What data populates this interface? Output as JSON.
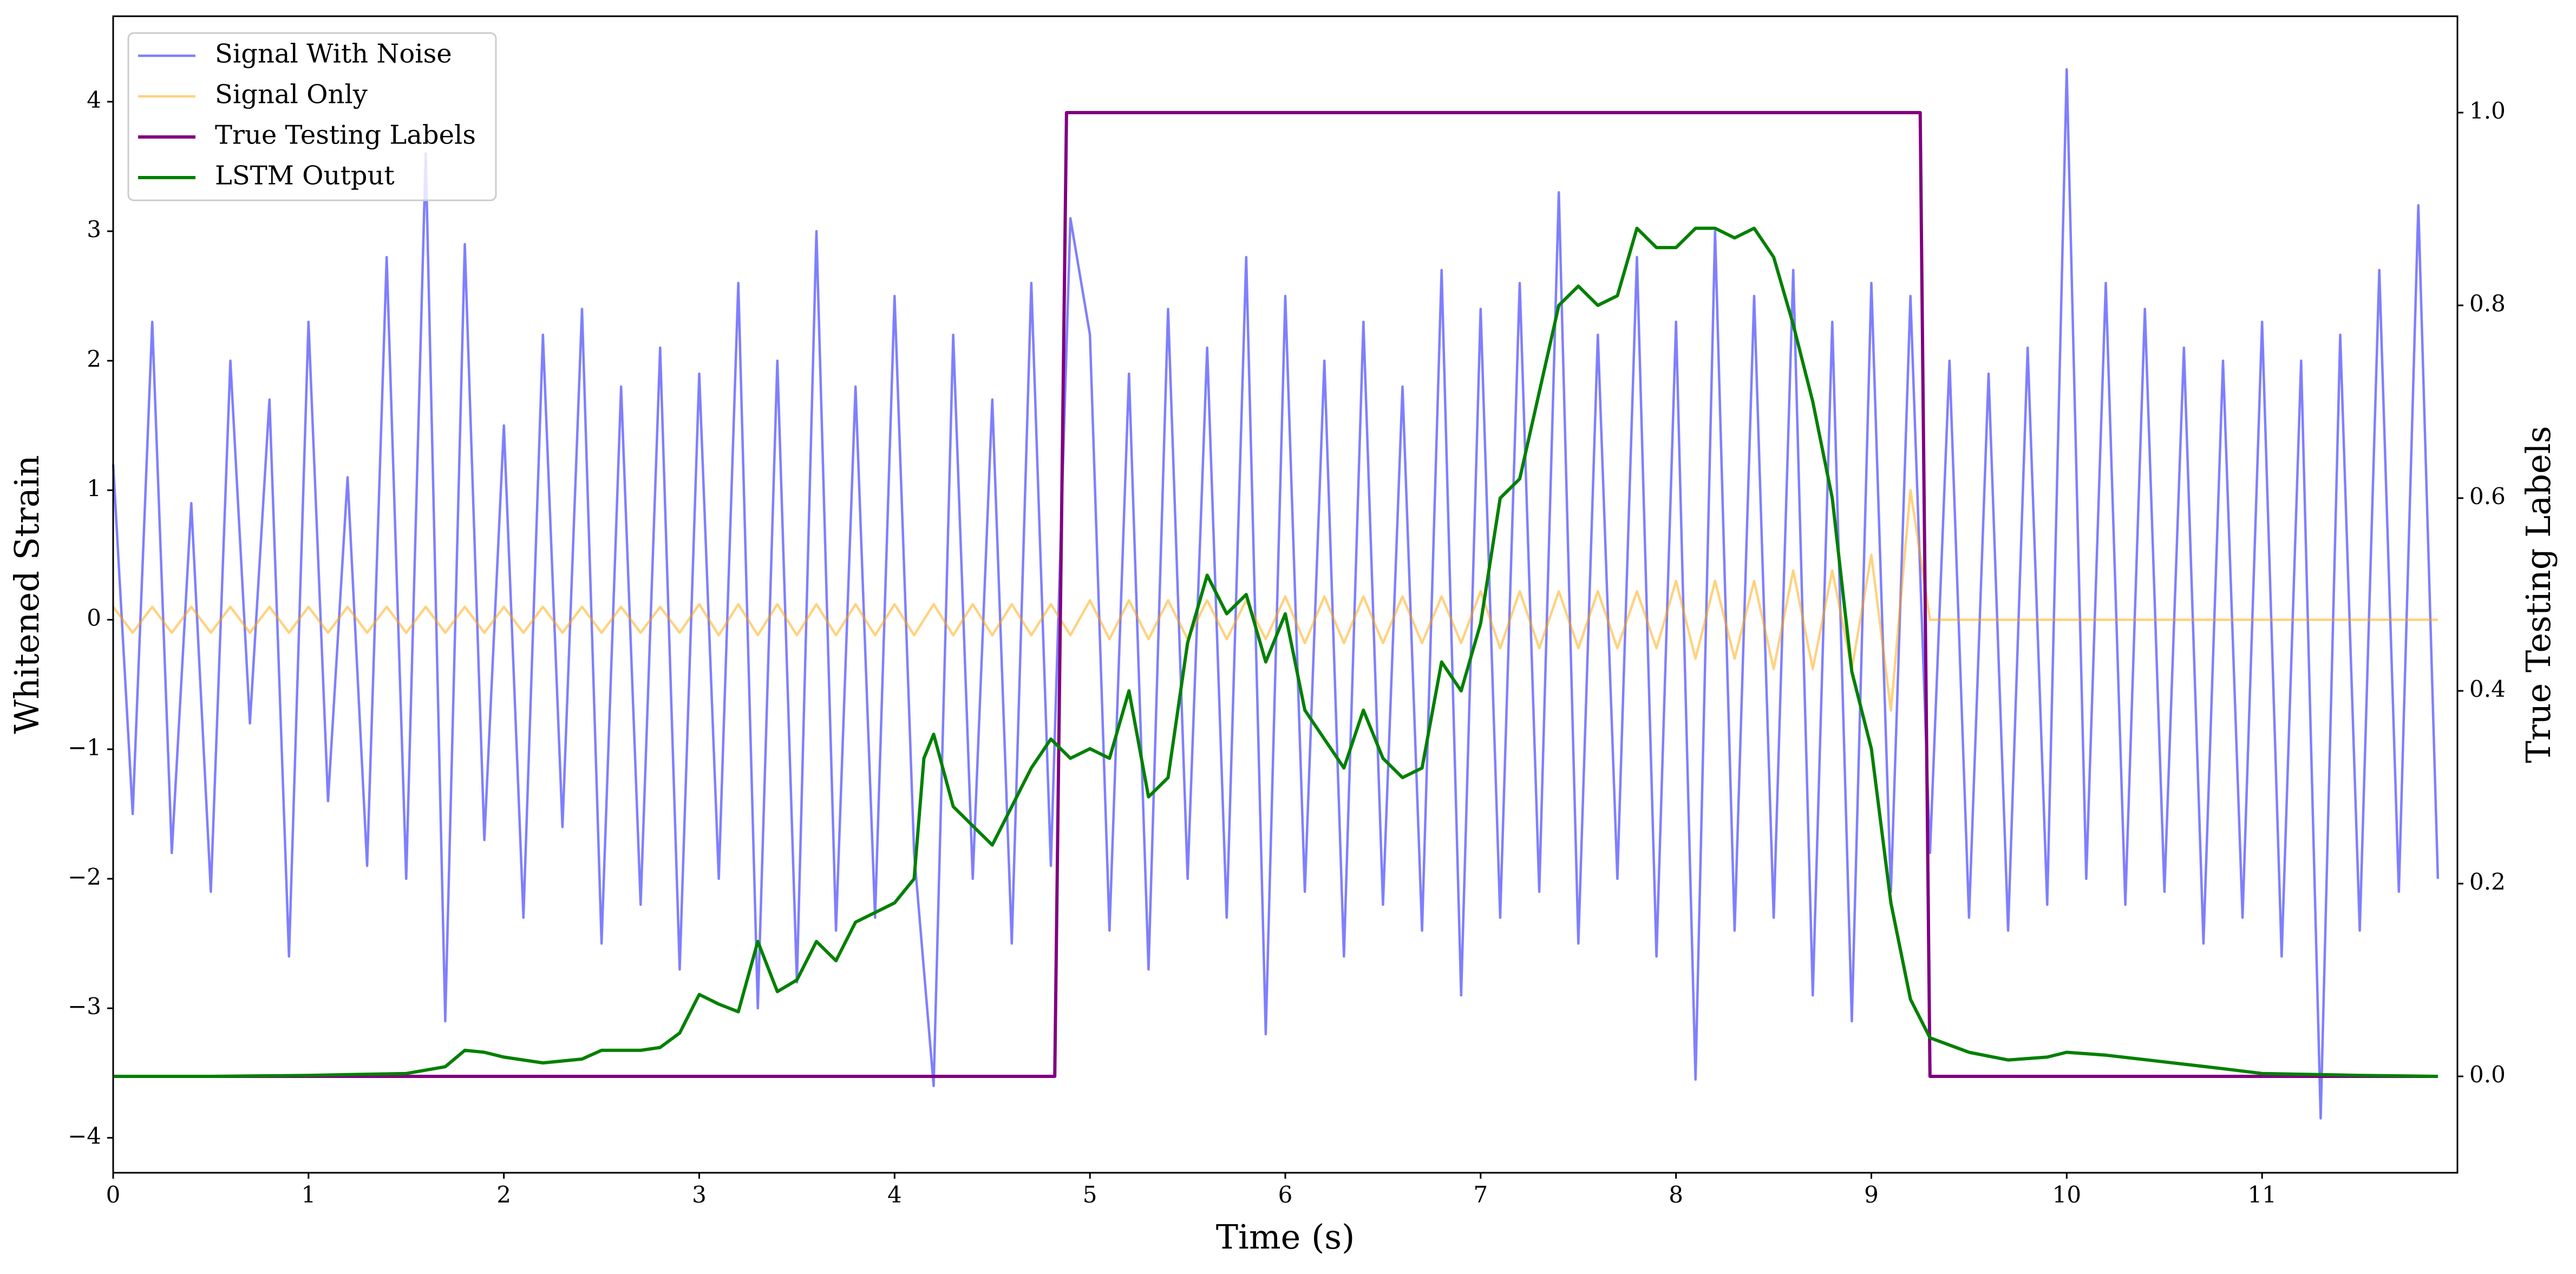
{
  "chart_data": {
    "type": "line",
    "x_label": "Time (s)",
    "y_label": "Whitened Strain",
    "y2_label": "True Testing Labels",
    "legend": "upper left",
    "xlim": [
      0,
      12
    ],
    "ylim": [
      -4.27,
      4.66
    ],
    "y2lim": [
      -0.1,
      1.1
    ],
    "xticks": [
      0,
      1,
      2,
      3,
      4,
      5,
      6,
      7,
      8,
      9,
      10,
      11
    ],
    "yticks": [
      {
        "value": -4,
        "label": "−4"
      },
      {
        "value": -3,
        "label": "−3"
      },
      {
        "value": -2,
        "label": "−2"
      },
      {
        "value": -1,
        "label": "−1"
      },
      0,
      1,
      2,
      3,
      4
    ],
    "y2ticks": [
      {
        "value": 0,
        "label": "0.0"
      },
      {
        "value": 0.2,
        "label": "0.2"
      },
      {
        "value": 0.4,
        "label": "0.4"
      },
      {
        "value": 0.6,
        "label": "0.6"
      },
      {
        "value": 0.8,
        "label": "0.8"
      },
      {
        "value": 1,
        "label": "1.0"
      }
    ],
    "x": [
      0,
      0.1,
      0.2,
      0.3,
      0.4,
      0.5,
      0.6,
      0.7,
      0.8,
      0.9,
      1,
      1.1,
      1.2,
      1.3,
      1.4,
      1.5,
      1.6,
      1.7,
      1.8,
      1.9,
      2,
      2.1,
      2.2,
      2.3,
      2.4,
      2.5,
      2.6,
      2.7,
      2.8,
      2.9,
      3,
      3.1,
      3.2,
      3.3,
      3.4,
      3.5,
      3.6,
      3.7,
      3.8,
      3.9,
      4,
      4.1,
      4.2,
      4.3,
      4.4,
      4.5,
      4.6,
      4.7,
      4.8,
      4.9,
      5,
      5.1,
      5.2,
      5.3,
      5.4,
      5.5,
      5.6,
      5.7,
      5.8,
      5.9,
      6,
      6.1,
      6.2,
      6.3,
      6.4,
      6.5,
      6.6,
      6.7,
      6.8,
      6.9,
      7,
      7.1,
      7.2,
      7.3,
      7.4,
      7.5,
      7.6,
      7.7,
      7.8,
      7.9,
      8,
      8.1,
      8.2,
      8.3,
      8.4,
      8.5,
      8.6,
      8.7,
      8.8,
      8.9,
      9,
      9.1,
      9.2,
      9.3,
      9.4,
      9.5,
      9.6,
      9.7,
      9.8,
      9.9,
      10,
      10.1,
      10.2,
      10.3,
      10.4,
      10.5,
      10.6,
      10.7,
      10.8,
      10.9,
      11,
      11.1,
      11.2,
      11.3,
      11.4,
      11.5,
      11.6,
      11.7,
      11.8,
      11.9
    ],
    "series": [
      {
        "name": "Signal With Noise",
        "color": "#0000ff",
        "alpha": 0.5,
        "axis": "y",
        "width": 4.5,
        "values": [
          1.2,
          -1.5,
          2.3,
          -1.8,
          0.9,
          -2.1,
          2.0,
          -0.8,
          1.7,
          -2.6,
          2.3,
          -1.4,
          1.1,
          -1.9,
          2.8,
          -2.0,
          3.6,
          -3.1,
          2.9,
          -1.7,
          1.5,
          -2.3,
          2.2,
          -1.6,
          2.4,
          -2.5,
          1.8,
          -2.2,
          2.1,
          -2.7,
          1.9,
          -2.0,
          2.6,
          -3.0,
          2.0,
          -2.8,
          3.0,
          -2.4,
          1.8,
          -2.3,
          2.5,
          -1.8,
          -3.6,
          2.2,
          -2.0,
          1.7,
          -2.5,
          2.6,
          -1.9,
          3.1,
          2.2,
          -2.4,
          1.9,
          -2.7,
          2.4,
          -2.0,
          2.1,
          -2.3,
          2.8,
          -3.2,
          2.5,
          -2.1,
          2.0,
          -2.6,
          2.3,
          -2.2,
          1.8,
          -2.4,
          2.7,
          -2.9,
          2.4,
          -2.3,
          2.6,
          -2.1,
          3.3,
          -2.5,
          2.2,
          -2.0,
          2.8,
          -2.6,
          2.3,
          -3.55,
          3.0,
          -2.4,
          2.5,
          -2.3,
          2.7,
          -2.9,
          2.3,
          -3.1,
          2.6,
          -2.1,
          2.5,
          -1.8,
          2.0,
          -2.3,
          1.9,
          -2.4,
          2.1,
          -2.2,
          4.25,
          -2.0,
          2.6,
          -2.2,
          2.4,
          -2.1,
          2.1,
          -2.5,
          2.0,
          -2.3,
          2.3,
          -2.6,
          2.0,
          -3.85,
          2.2,
          -2.4,
          2.7,
          -2.1,
          3.2,
          -2.0
        ]
      },
      {
        "name": "Signal Only",
        "color": "#ffa500",
        "alpha": 0.5,
        "axis": "y",
        "width": 4.5,
        "values": [
          0.1,
          -0.1,
          0.1,
          -0.1,
          0.1,
          -0.1,
          0.1,
          -0.1,
          0.1,
          -0.1,
          0.1,
          -0.1,
          0.1,
          -0.1,
          0.1,
          -0.1,
          0.1,
          -0.1,
          0.1,
          -0.1,
          0.1,
          -0.1,
          0.1,
          -0.1,
          0.1,
          -0.1,
          0.1,
          -0.1,
          0.1,
          -0.1,
          0.12,
          -0.12,
          0.12,
          -0.12,
          0.12,
          -0.12,
          0.12,
          -0.12,
          0.12,
          -0.12,
          0.12,
          -0.12,
          0.12,
          -0.12,
          0.12,
          -0.12,
          0.12,
          -0.12,
          0.12,
          -0.12,
          0.15,
          -0.15,
          0.15,
          -0.15,
          0.15,
          -0.15,
          0.15,
          -0.15,
          0.15,
          -0.15,
          0.18,
          -0.18,
          0.18,
          -0.18,
          0.18,
          -0.18,
          0.18,
          -0.18,
          0.18,
          -0.18,
          0.22,
          -0.22,
          0.22,
          -0.22,
          0.22,
          -0.22,
          0.22,
          -0.22,
          0.22,
          -0.22,
          0.3,
          -0.3,
          0.3,
          -0.3,
          0.3,
          -0.38,
          0.38,
          -0.38,
          0.38,
          -0.38,
          0.5,
          -0.7,
          1.0,
          0,
          0,
          0,
          0,
          0,
          0,
          0,
          0,
          0,
          0,
          0,
          0,
          0,
          0,
          0,
          0,
          0,
          0,
          0,
          0,
          0,
          0,
          0,
          0,
          0,
          0,
          0
        ]
      },
      {
        "name": "True Testing Labels",
        "color": "#800080",
        "alpha": 1,
        "axis": "y2",
        "width": 6,
        "x": [
          0,
          4.82,
          4.88,
          9.25,
          9.3,
          11.9
        ],
        "values": [
          0,
          0,
          1,
          1,
          0,
          0
        ]
      },
      {
        "name": "LSTM Output",
        "color": "#008000",
        "alpha": 1,
        "axis": "y2",
        "width": 6,
        "x": [
          0,
          0.5,
          1,
          1.5,
          1.7,
          1.8,
          1.9,
          2,
          2.2,
          2.4,
          2.5,
          2.7,
          2.8,
          2.9,
          3,
          3.1,
          3.2,
          3.3,
          3.4,
          3.5,
          3.6,
          3.7,
          3.8,
          3.9,
          4,
          4.1,
          4.15,
          4.2,
          4.3,
          4.4,
          4.5,
          4.6,
          4.7,
          4.8,
          4.9,
          5,
          5.1,
          5.2,
          5.3,
          5.4,
          5.5,
          5.6,
          5.7,
          5.8,
          5.9,
          6,
          6.1,
          6.2,
          6.3,
          6.4,
          6.5,
          6.6,
          6.7,
          6.8,
          6.9,
          7,
          7.1,
          7.2,
          7.3,
          7.4,
          7.5,
          7.6,
          7.7,
          7.8,
          7.9,
          8,
          8.1,
          8.2,
          8.3,
          8.4,
          8.5,
          8.6,
          8.7,
          8.8,
          8.9,
          9,
          9.1,
          9.2,
          9.3,
          9.5,
          9.7,
          9.9,
          10,
          10.2,
          10.5,
          10.8,
          11,
          11.5,
          11.9
        ],
        "values": [
          0,
          0,
          0.001,
          0.003,
          0.01,
          0.027,
          0.025,
          0.02,
          0.014,
          0.018,
          0.027,
          0.027,
          0.03,
          0.045,
          0.085,
          0.075,
          0.067,
          0.14,
          0.088,
          0.1,
          0.14,
          0.12,
          0.16,
          0.17,
          0.18,
          0.205,
          0.33,
          0.355,
          0.28,
          0.26,
          0.24,
          0.28,
          0.32,
          0.35,
          0.33,
          0.34,
          0.33,
          0.4,
          0.29,
          0.31,
          0.45,
          0.52,
          0.48,
          0.5,
          0.43,
          0.48,
          0.38,
          0.35,
          0.32,
          0.38,
          0.33,
          0.31,
          0.32,
          0.43,
          0.4,
          0.47,
          0.6,
          0.62,
          0.71,
          0.8,
          0.82,
          0.8,
          0.81,
          0.88,
          0.86,
          0.86,
          0.88,
          0.88,
          0.87,
          0.88,
          0.85,
          0.78,
          0.7,
          0.6,
          0.42,
          0.34,
          0.18,
          0.08,
          0.04,
          0.025,
          0.017,
          0.02,
          0.025,
          0.022,
          0.015,
          0.008,
          0.003,
          0.001,
          0
        ]
      }
    ]
  }
}
